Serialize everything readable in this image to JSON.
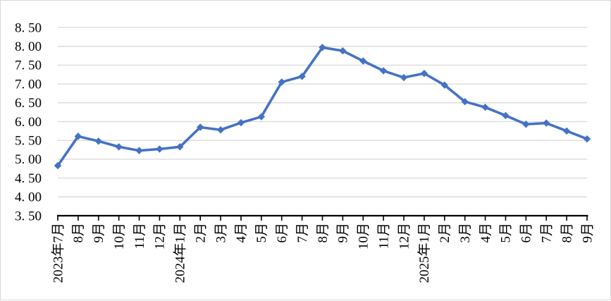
{
  "chart_data": {
    "type": "line",
    "title": "",
    "categories": [
      "2023年7月",
      "8月",
      "9月",
      "10月",
      "11月",
      "12月",
      "2024年1月",
      "2月",
      "3月",
      "4月",
      "5月",
      "6月",
      "7月",
      "8月",
      "9月",
      "10月",
      "11月",
      "12月",
      "2025年1月",
      "2月",
      "3月",
      "4月",
      "5月",
      "6月",
      "7月",
      "8月",
      "9月"
    ],
    "values": [
      4.83,
      5.61,
      5.48,
      5.33,
      5.23,
      5.27,
      5.33,
      5.85,
      5.78,
      5.97,
      6.13,
      7.05,
      7.2,
      7.97,
      7.88,
      7.61,
      7.35,
      7.17,
      7.28,
      6.97,
      6.53,
      6.38,
      6.16,
      5.93,
      5.96,
      5.75,
      5.54
    ],
    "xlabel": "",
    "ylabel": "",
    "ylim": [
      3.5,
      8.5
    ],
    "ytick_step": 0.5,
    "ytick_labels": [
      "3. 50",
      "4. 00",
      "4. 50",
      "5. 00",
      "5. 50",
      "6. 00",
      "6. 50",
      "7. 00",
      "7. 50",
      "8. 00",
      "8. 50"
    ],
    "grid": true,
    "legend": "none",
    "marker": "diamond",
    "colors": {
      "series": "#4472C4",
      "gridline": "#D9D9D9",
      "axis": "#000000",
      "text": "#000000",
      "background": "#FFFFFF",
      "border": "#D9D9D9"
    }
  }
}
